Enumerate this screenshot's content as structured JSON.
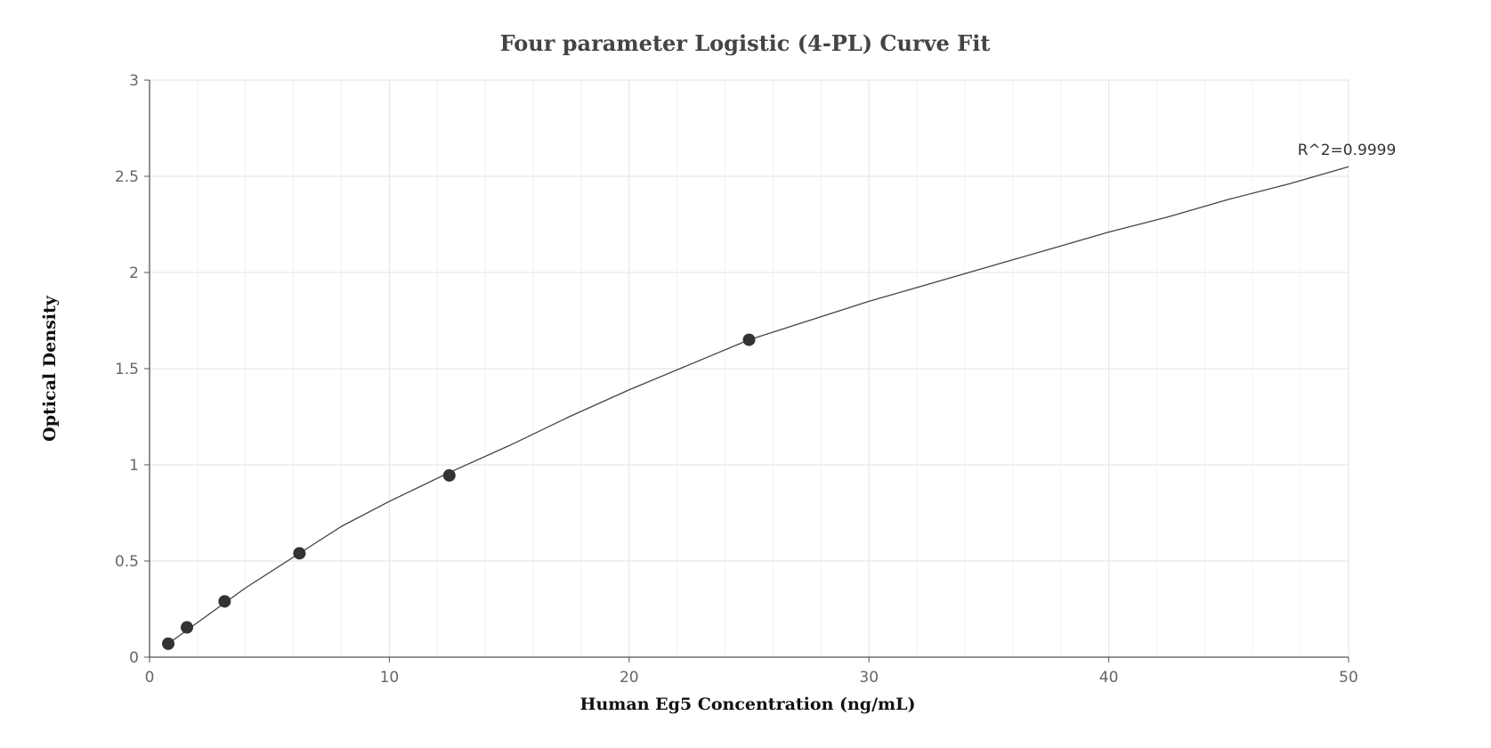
{
  "chart_data": {
    "type": "scatter",
    "title": "Four parameter Logistic (4-PL) Curve Fit",
    "xlabel": "Human Eg5 Concentration (ng/mL)",
    "ylabel": "Optical Density",
    "xlim": [
      0,
      50
    ],
    "ylim": [
      0,
      3
    ],
    "x_ticks": [
      0,
      10,
      20,
      30,
      40,
      50
    ],
    "y_ticks": [
      0,
      0.5,
      1,
      1.5,
      2,
      2.5,
      3
    ],
    "grid": true,
    "legend": "none",
    "series": [
      {
        "points": [
          {
            "x": 0.78,
            "y": 0.07
          },
          {
            "x": 1.56,
            "y": 0.155
          },
          {
            "x": 3.13,
            "y": 0.29
          },
          {
            "x": 6.25,
            "y": 0.54
          },
          {
            "x": 12.5,
            "y": 0.945
          },
          {
            "x": 25,
            "y": 1.65
          }
        ]
      }
    ],
    "fit_curve": {
      "model": "4PL",
      "x": [
        0.78,
        2,
        4,
        6.25,
        8,
        10,
        12.5,
        15,
        17.5,
        20,
        22.5,
        25,
        27.5,
        30,
        32.5,
        35,
        37.5,
        40,
        42.5,
        45,
        47.5,
        50
      ],
      "y": [
        0.07,
        0.18,
        0.36,
        0.54,
        0.68,
        0.81,
        0.96,
        1.1,
        1.25,
        1.39,
        1.52,
        1.65,
        1.75,
        1.85,
        1.94,
        2.03,
        2.12,
        2.21,
        2.29,
        2.38,
        2.46,
        2.55
      ]
    },
    "annotation": "R^2=0.9999",
    "colors": {
      "points": "#333333",
      "curve": "#444444",
      "grid": "#e6e8ee",
      "minor_grid": "#f2f3f6",
      "axis": "#555555"
    }
  }
}
